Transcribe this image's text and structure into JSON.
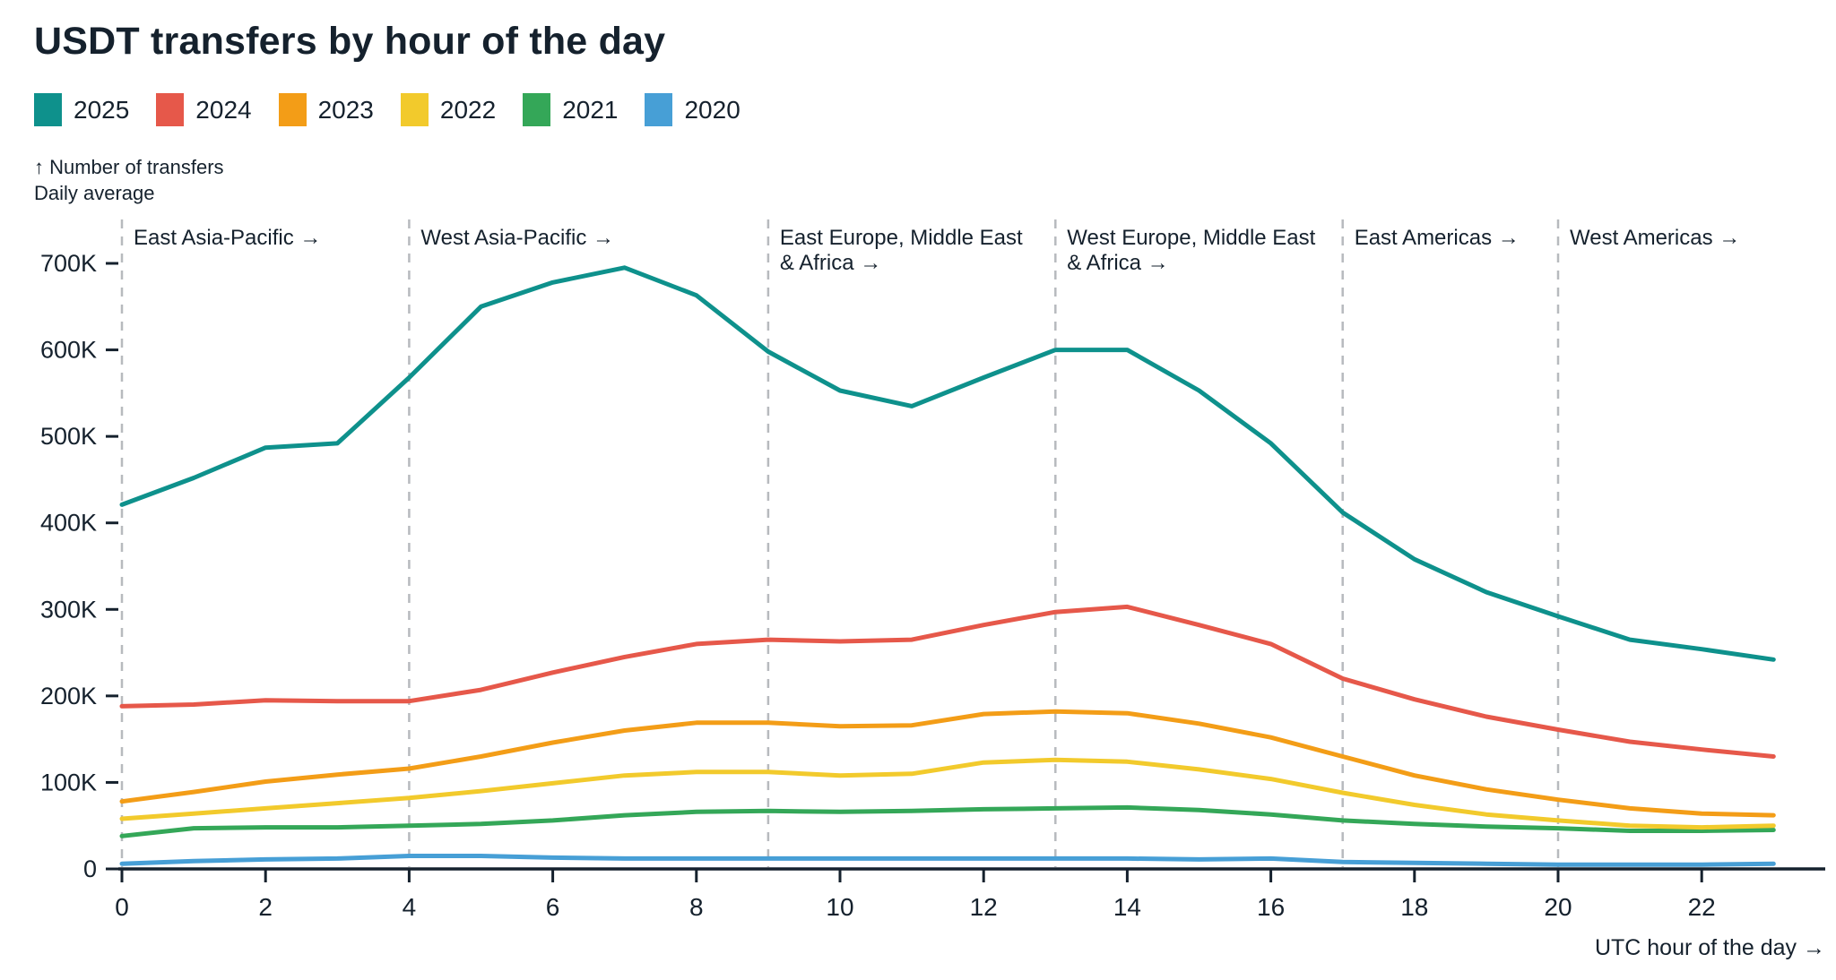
{
  "page": {
    "background": "#ffffff",
    "text_color": "#15212d"
  },
  "header": {
    "title": "USDT transfers by hour of the day",
    "y_axis_note_line1": "↑ Number of transfers",
    "y_axis_note_line2": "Daily average"
  },
  "legend": [
    {
      "label": "2025",
      "color": "#0e918c"
    },
    {
      "label": "2024",
      "color": "#e6584a"
    },
    {
      "label": "2023",
      "color": "#f39d17"
    },
    {
      "label": "2022",
      "color": "#f2ca2c"
    },
    {
      "label": "2021",
      "color": "#34a758"
    },
    {
      "label": "2020",
      "color": "#479fd6"
    }
  ],
  "chart_data": {
    "type": "line",
    "title": "USDT transfers by hour of the day",
    "xlabel": "UTC hour of the day →",
    "ylabel": "Number of transfers, daily average",
    "x": [
      0,
      1,
      2,
      3,
      4,
      5,
      6,
      7,
      8,
      9,
      10,
      11,
      12,
      13,
      14,
      15,
      16,
      17,
      18,
      19,
      20,
      21,
      22,
      23
    ],
    "xlim": [
      0,
      23
    ],
    "ylim": [
      0,
      725000
    ],
    "grid": "none",
    "legend_position": "top-left",
    "x_ticks": [
      {
        "value": 0,
        "label": "0"
      },
      {
        "value": 2,
        "label": "2"
      },
      {
        "value": 4,
        "label": "4"
      },
      {
        "value": 6,
        "label": "6"
      },
      {
        "value": 8,
        "label": "8"
      },
      {
        "value": 10,
        "label": "10"
      },
      {
        "value": 12,
        "label": "12"
      },
      {
        "value": 14,
        "label": "14"
      },
      {
        "value": 16,
        "label": "16"
      },
      {
        "value": 18,
        "label": "18"
      },
      {
        "value": 20,
        "label": "20"
      },
      {
        "value": 22,
        "label": "22"
      }
    ],
    "y_ticks": [
      {
        "value": 0,
        "label": "0"
      },
      {
        "value": 100000,
        "label": "100K"
      },
      {
        "value": 200000,
        "label": "200K"
      },
      {
        "value": 300000,
        "label": "300K"
      },
      {
        "value": 400000,
        "label": "400K"
      },
      {
        "value": 500000,
        "label": "500K"
      },
      {
        "value": 600000,
        "label": "600K"
      },
      {
        "value": 700000,
        "label": "700K"
      }
    ],
    "regions": [
      {
        "hour": 0,
        "label_lines": [
          "East Asia-Pacific →"
        ]
      },
      {
        "hour": 4,
        "label_lines": [
          "West Asia-Pacific →"
        ]
      },
      {
        "hour": 9,
        "label_lines": [
          "East Europe, Middle East",
          "& Africa →"
        ]
      },
      {
        "hour": 13,
        "label_lines": [
          "West Europe, Middle East",
          "& Africa →"
        ]
      },
      {
        "hour": 17,
        "label_lines": [
          "East Americas →"
        ]
      },
      {
        "hour": 20,
        "label_lines": [
          "West Americas →"
        ]
      }
    ],
    "series": [
      {
        "name": "2025",
        "color": "#0e918c",
        "values": [
          421000,
          452000,
          487000,
          492000,
          568000,
          650000,
          678000,
          695000,
          663000,
          598000,
          553000,
          535000,
          568000,
          600000,
          600000,
          553000,
          492000,
          412000,
          358000,
          320000,
          292000,
          265000,
          254000,
          242000
        ]
      },
      {
        "name": "2024",
        "color": "#e6584a",
        "values": [
          188000,
          190000,
          195000,
          194000,
          194000,
          207000,
          227000,
          245000,
          260000,
          265000,
          263000,
          265000,
          282000,
          297000,
          303000,
          282000,
          260000,
          220000,
          196000,
          176000,
          161000,
          147000,
          138000,
          130000
        ]
      },
      {
        "name": "2023",
        "color": "#f39d17",
        "values": [
          78000,
          89000,
          101000,
          109000,
          116000,
          130000,
          146000,
          160000,
          169000,
          169000,
          165000,
          166000,
          179000,
          182000,
          180000,
          168000,
          152000,
          130000,
          108000,
          92000,
          80000,
          70000,
          64000,
          62000
        ]
      },
      {
        "name": "2022",
        "color": "#f2ca2c",
        "values": [
          58000,
          64000,
          70000,
          76000,
          82000,
          90000,
          99000,
          108000,
          112000,
          112000,
          108000,
          110000,
          123000,
          126000,
          124000,
          115000,
          104000,
          88000,
          74000,
          63000,
          56000,
          50000,
          48000,
          50000
        ]
      },
      {
        "name": "2021",
        "color": "#34a758",
        "values": [
          38000,
          47000,
          48000,
          48000,
          50000,
          52000,
          56000,
          62000,
          66000,
          67000,
          66000,
          67000,
          69000,
          70000,
          71000,
          68000,
          63000,
          56000,
          52000,
          49000,
          47000,
          44000,
          44000,
          45000
        ]
      },
      {
        "name": "2020",
        "color": "#479fd6",
        "values": [
          6000,
          9000,
          11000,
          12000,
          15000,
          15000,
          13000,
          12000,
          12000,
          12000,
          12000,
          12000,
          12000,
          12000,
          12000,
          11000,
          12000,
          8000,
          7000,
          6000,
          5000,
          5000,
          5000,
          6000
        ]
      }
    ]
  }
}
